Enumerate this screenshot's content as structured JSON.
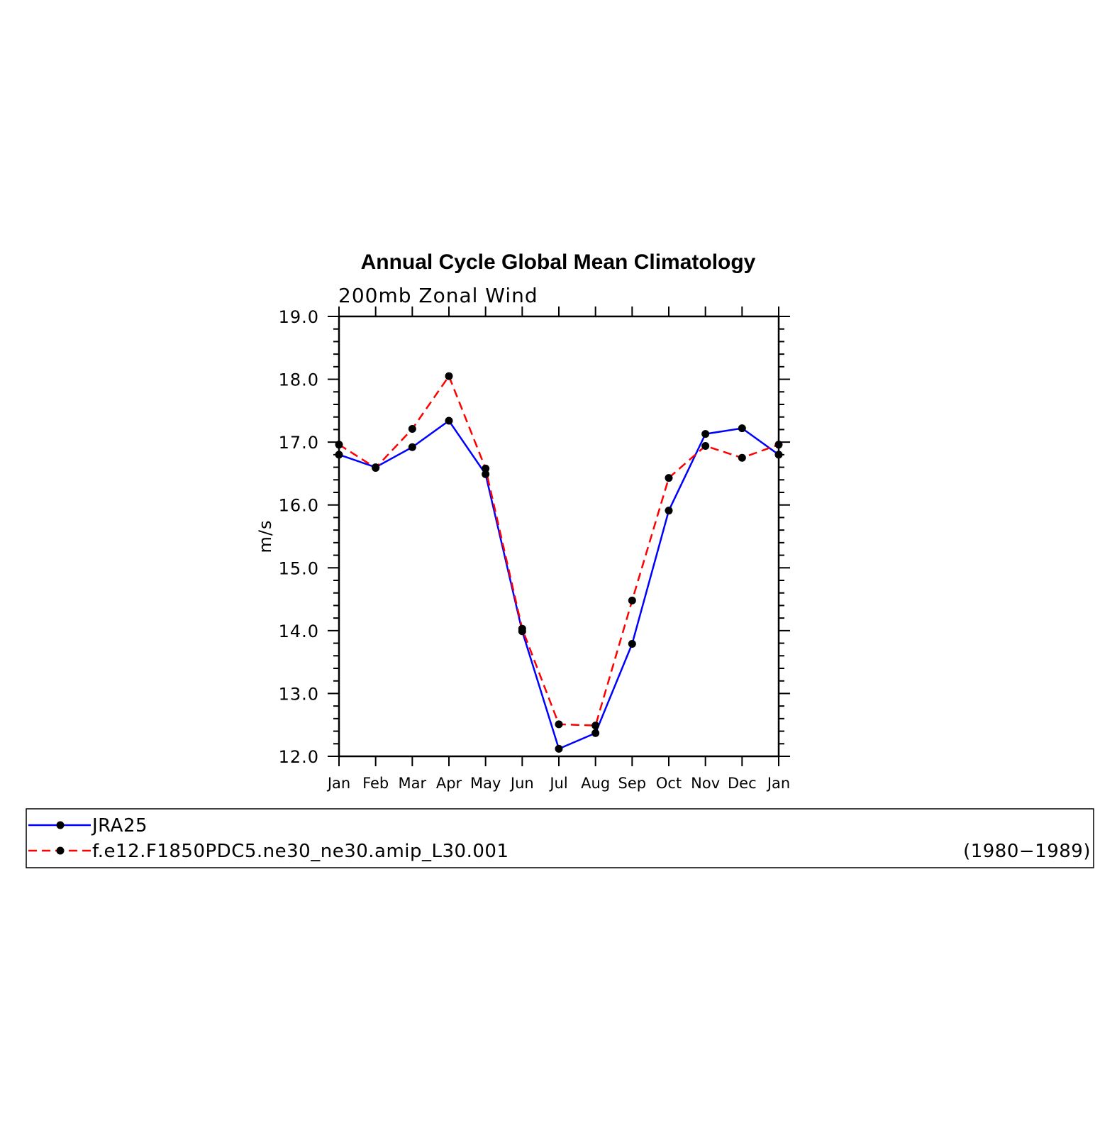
{
  "chart_data": {
    "type": "line",
    "title": "Annual Cycle Global Mean Climatology",
    "subtitle": "200mb Zonal Wind",
    "ylabel": "m/s",
    "xlabel": "",
    "categories": [
      "Jan",
      "Feb",
      "Mar",
      "Apr",
      "May",
      "Jun",
      "Jul",
      "Aug",
      "Sep",
      "Oct",
      "Nov",
      "Dec",
      "Jan"
    ],
    "ylim": [
      12.0,
      19.0
    ],
    "yticks": [
      "12.0",
      "13.0",
      "14.0",
      "15.0",
      "16.0",
      "17.0",
      "18.0",
      "19.0"
    ],
    "grid": false,
    "legend_position": "bottom",
    "period_label": "(1980−1989)",
    "series": [
      {
        "name": "JRA25",
        "color": "#0000ff",
        "line_style": "solid",
        "values": [
          16.8,
          16.6,
          16.92,
          17.34,
          16.49,
          13.99,
          12.12,
          12.37,
          13.79,
          15.91,
          17.13,
          17.22,
          16.8
        ]
      },
      {
        "name": "f.e12.F1850PDC5.ne30_ne30.amip_L30.001",
        "color": "#ff0000",
        "line_style": "dashed",
        "values": [
          16.96,
          16.59,
          17.21,
          18.05,
          16.58,
          14.03,
          12.51,
          12.49,
          14.48,
          16.43,
          16.94,
          16.75,
          16.96
        ]
      }
    ]
  }
}
